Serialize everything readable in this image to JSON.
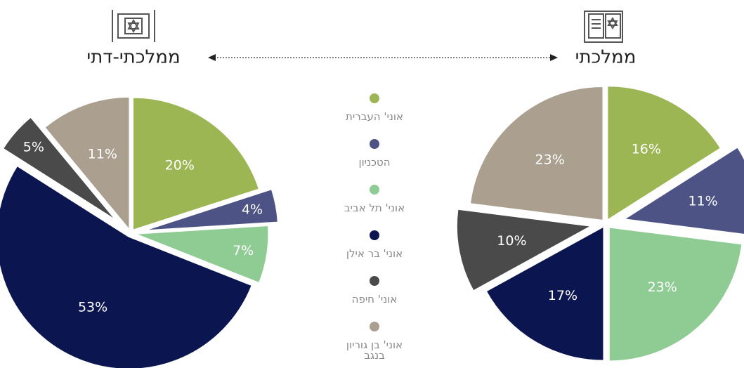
{
  "legend": {
    "categories": [
      "אוני' העברית",
      "הטכניון",
      "אוני' תל אביב",
      "אוני' בר אילן",
      "אוני' חיפה",
      "אוני' בן גוריון בנגב"
    ],
    "colors": [
      "#9bb653",
      "#4d5385",
      "#8fcc93",
      "#0b1650",
      "#4a4a4a",
      "#aba08f"
    ]
  },
  "chart_data": [
    {
      "type": "pie",
      "title": "ממלכתי-דתי",
      "values": [
        20,
        4,
        7,
        53,
        5,
        11
      ],
      "value_labels": [
        "20%",
        "4%",
        "7%",
        "53%",
        "5%",
        "11%"
      ]
    },
    {
      "type": "pie",
      "title": "ממלכתי",
      "values": [
        16,
        11,
        23,
        17,
        10,
        23
      ],
      "value_labels": [
        "16%",
        "11%",
        "23%",
        "17%",
        "10%",
        "23%"
      ]
    }
  ]
}
